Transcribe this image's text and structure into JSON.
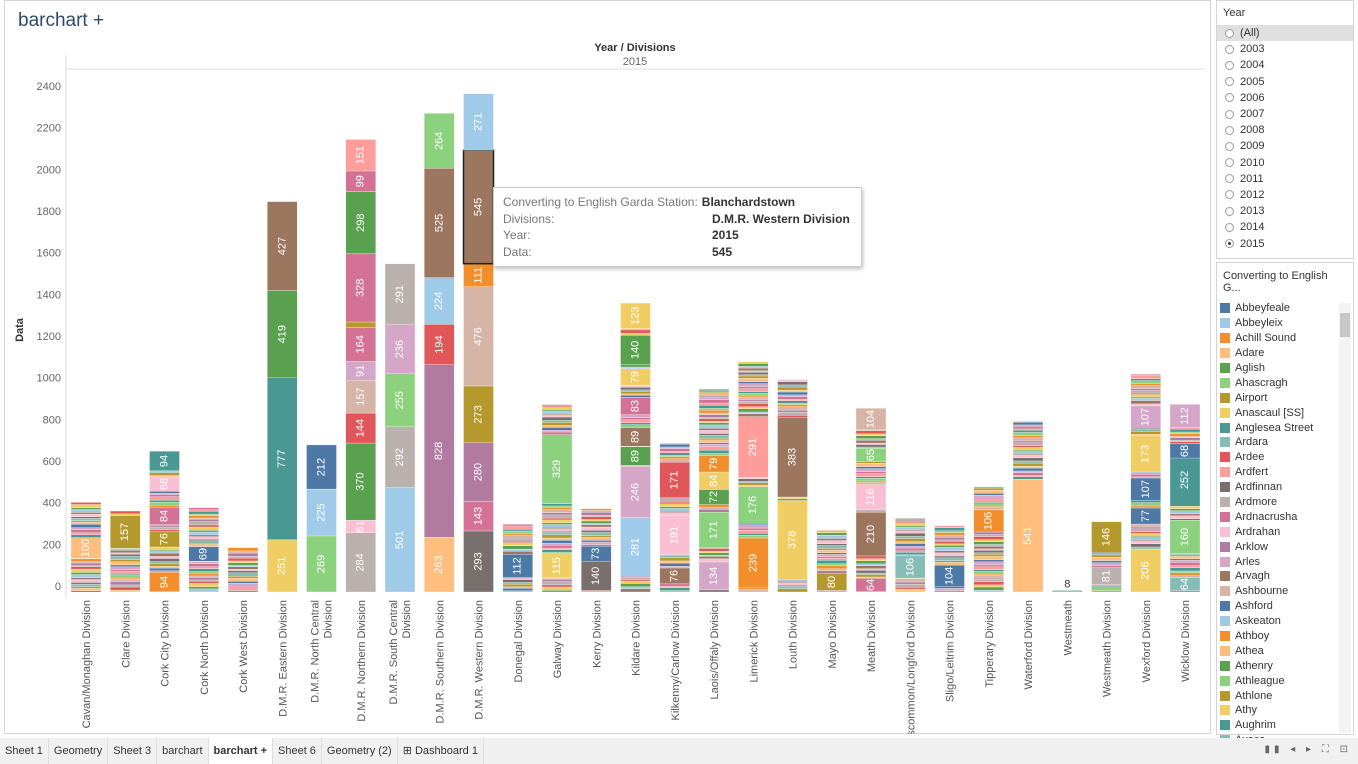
{
  "title": "barchart +",
  "chart_data": {
    "type": "bar",
    "stacked": true,
    "title": "Year / Divisions",
    "subtitle": "2015",
    "ylabel": "Data",
    "xlabel": "",
    "ylim": [
      0,
      2450
    ],
    "yticks": [
      0,
      200,
      400,
      600,
      800,
      1000,
      1200,
      1400,
      1600,
      1800,
      2000,
      2200,
      2400
    ],
    "grid": false,
    "legend": "right",
    "categories": [
      "Cavan/Monaghan Division",
      "Clare Division",
      "Cork City Division",
      "Cork North Division",
      "Cork West Division",
      "D.M.R. Eastern Division",
      "D.M.R. North Central Division",
      "D.M.R. Northern Division",
      "D.M.R. South Central Division",
      "D.M.R. Southern Division",
      "D.M.R. Western Division",
      "Donegal Division",
      "Galway Division",
      "Kerry Division",
      "Kildare Division",
      "Kilkenny/Carlow Division",
      "Laois/Offaly Division",
      "Limerick Division",
      "Louth Division",
      "Mayo Division",
      "Meath Division",
      "Roscommon/Longford Division",
      "Sligo/Leitrim Division",
      "Tipperary Division",
      "Waterford Division",
      "Westmeath",
      "Westmeath Division",
      "Wexford Division",
      "Wicklow Division"
    ],
    "totals": [
      430,
      390,
      675,
      405,
      215,
      1875,
      706,
      2172,
      1575,
      2298,
      2392,
      325,
      900,
      400,
      1387,
      715,
      975,
      1105,
      1020,
      295,
      882,
      355,
      320,
      505,
      820,
      8,
      337,
      1045,
      901
    ],
    "labeled_segments": [
      [
        {
          "base": 161,
          "value": 100,
          "color": "#ffbe7d"
        }
      ],
      [
        {
          "base": 210,
          "value": 157,
          "color": "#b6992d"
        }
      ],
      [
        {
          "base": 1,
          "value": 94,
          "color": "#f28e2b"
        },
        {
          "base": 216,
          "value": 76,
          "color": "#b6992d"
        },
        {
          "base": 323,
          "value": 84,
          "color": "#d37295"
        },
        {
          "base": 484,
          "value": 68,
          "color": "#fabfd2"
        },
        {
          "base": 582,
          "value": 94,
          "color": "#499894"
        }
      ],
      [
        {
          "base": 148,
          "value": 69,
          "color": "#4e79a7"
        }
      ],
      [],
      [
        {
          "base": 0,
          "value": 251,
          "color": "#f1ce63"
        },
        {
          "base": 251,
          "value": 777,
          "color": "#499894"
        },
        {
          "base": 1028,
          "value": 419,
          "color": "#59a14f"
        },
        {
          "base": 1447,
          "value": 427,
          "color": "#9d7660"
        }
      ],
      [
        {
          "base": 0,
          "value": 269,
          "color": "#8cd17d"
        },
        {
          "base": 269,
          "value": 225,
          "color": "#a0cbe8"
        },
        {
          "base": 494,
          "value": 212,
          "color": "#4e79a7"
        }
      ],
      [
        {
          "base": 0,
          "value": 284,
          "color": "#bab0ac"
        },
        {
          "base": 284,
          "value": 61,
          "color": "#fabfd2"
        },
        {
          "base": 345,
          "value": 370,
          "color": "#59a14f"
        },
        {
          "base": 715,
          "value": 144,
          "color": "#e15759"
        },
        {
          "base": 859,
          "value": 157,
          "color": "#d7b5a6"
        },
        {
          "base": 1016,
          "value": 91,
          "color": "#d4a6c8"
        },
        {
          "base": 1107,
          "value": 164,
          "color": "#d37295"
        },
        {
          "base": 1271,
          "value": 25,
          "color": "#b6992d"
        },
        {
          "base": 1296,
          "value": 328,
          "color": "#d37295"
        },
        {
          "base": 1624,
          "value": 298,
          "color": "#59a14f"
        },
        {
          "base": 1922,
          "value": 99,
          "color": "#d37295"
        },
        {
          "base": 2021,
          "value": 151,
          "color": "#ff9d9a"
        }
      ],
      [
        {
          "base": 0,
          "value": 501,
          "color": "#a0cbe8"
        },
        {
          "base": 501,
          "value": 292,
          "color": "#bab0ac"
        },
        {
          "base": 793,
          "value": 255,
          "color": "#8cd17d"
        },
        {
          "base": 1048,
          "value": 236,
          "color": "#d4a6c8"
        },
        {
          "base": 1284,
          "value": 291,
          "color": "#bab0ac"
        }
      ],
      [
        {
          "base": 0,
          "value": 263,
          "color": "#ffbe7d"
        },
        {
          "base": 263,
          "value": 828,
          "color": "#b07aa1"
        },
        {
          "base": 1091,
          "value": 194,
          "color": "#e15759"
        },
        {
          "base": 1285,
          "value": 224,
          "color": "#a0cbe8"
        },
        {
          "base": 1509,
          "value": 525,
          "color": "#9d7660"
        },
        {
          "base": 2034,
          "value": 264,
          "color": "#8cd17d"
        }
      ],
      [
        {
          "base": 0,
          "value": 293,
          "color": "#79706e"
        },
        {
          "base": 293,
          "value": 143,
          "color": "#d37295"
        },
        {
          "base": 436,
          "value": 280,
          "color": "#b07aa1"
        },
        {
          "base": 716,
          "value": 273,
          "color": "#b6992d"
        },
        {
          "base": 989,
          "value": 476,
          "color": "#d7b5a6"
        },
        {
          "base": 1465,
          "value": 111,
          "color": "#f28e2b"
        },
        {
          "base": 1576,
          "value": 545,
          "color": "#9d7660",
          "highlight": true
        },
        {
          "base": 2121,
          "value": 271,
          "color": "#a0cbe8"
        }
      ],
      [
        {
          "base": 69,
          "value": 112,
          "color": "#4e79a7"
        }
      ],
      [
        {
          "base": 68,
          "value": 115,
          "color": "#f1ce63"
        },
        {
          "base": 426,
          "value": 329,
          "color": "#8cd17d"
        }
      ],
      [
        {
          "base": 7,
          "value": 140,
          "color": "#79706e"
        },
        {
          "base": 147,
          "value": 73,
          "color": "#4e79a7"
        }
      ],
      [
        {
          "base": 76,
          "value": 281,
          "color": "#a0cbe8"
        },
        {
          "base": 357,
          "value": 246,
          "color": "#d4a6c8"
        },
        {
          "base": 608,
          "value": 89,
          "color": "#59a14f"
        },
        {
          "base": 700,
          "value": 89,
          "color": "#9d7660"
        },
        {
          "base": 851,
          "value": 83,
          "color": "#d37295"
        },
        {
          "base": 992,
          "value": 79,
          "color": "#f1ce63"
        },
        {
          "base": 1092,
          "value": 140,
          "color": "#59a14f"
        },
        {
          "base": 1264,
          "value": 123,
          "color": "#f1ce63"
        }
      ],
      [
        {
          "base": 39,
          "value": 76,
          "color": "#9d7660"
        },
        {
          "base": 178,
          "value": 191,
          "color": "#fabfd2"
        },
        {
          "base": 452,
          "value": 171,
          "color": "#e15759"
        }
      ],
      [
        {
          "base": 10,
          "value": 134,
          "color": "#d4a6c8"
        },
        {
          "base": 212,
          "value": 171,
          "color": "#8cd17d"
        },
        {
          "base": 420,
          "value": 72,
          "color": "#59a14f"
        },
        {
          "base": 492,
          "value": 84,
          "color": "#f1ce63"
        },
        {
          "base": 576,
          "value": 79,
          "color": "#f28e2b"
        }
      ],
      [
        {
          "base": 20,
          "value": 239,
          "color": "#f28e2b"
        },
        {
          "base": 330,
          "value": 176,
          "color": "#8cd17d"
        },
        {
          "base": 550,
          "value": 291,
          "color": "#ff9d9a"
        }
      ],
      [
        {
          "base": 61,
          "value": 378,
          "color": "#f1ce63"
        },
        {
          "base": 456,
          "value": 383,
          "color": "#9d7660"
        }
      ],
      [
        {
          "base": 8,
          "value": 80,
          "color": "#b6992d"
        }
      ],
      [
        {
          "base": 2,
          "value": 64,
          "color": "#d37295"
        },
        {
          "base": 173,
          "value": 210,
          "color": "#9d7660"
        },
        {
          "base": 398,
          "value": 116,
          "color": "#fabfd2"
        },
        {
          "base": 625,
          "value": 65,
          "color": "#8cd17d"
        },
        {
          "base": 778,
          "value": 104,
          "color": "#d7b5a6"
        }
      ],
      [
        {
          "base": 67,
          "value": 106,
          "color": "#86bcb6"
        }
      ],
      [
        {
          "base": 25,
          "value": 104,
          "color": "#4e79a7"
        }
      ],
      [
        {
          "base": 288,
          "value": 106,
          "color": "#f28e2b"
        }
      ],
      [
        {
          "base": 0,
          "value": 541,
          "color": "#ffbe7d"
        }
      ],
      [
        {
          "base": 0,
          "value": 8,
          "color": "#86bcb6"
        }
      ],
      [
        {
          "base": 36,
          "value": 81,
          "color": "#bab0ac"
        },
        {
          "base": 191,
          "value": 146,
          "color": "#b6992d"
        }
      ],
      [
        {
          "base": 0,
          "value": 206,
          "color": "#f1ce63"
        },
        {
          "base": 326,
          "value": 77,
          "color": "#4e79a7"
        },
        {
          "base": 440,
          "value": 107,
          "color": "#4e79a7"
        },
        {
          "base": 576,
          "value": 173,
          "color": "#f1ce63"
        },
        {
          "base": 786,
          "value": 107,
          "color": "#d4a6c8"
        }
      ],
      [
        {
          "base": 6,
          "value": 64,
          "color": "#86bcb6"
        },
        {
          "base": 184,
          "value": 160,
          "color": "#8cd17d"
        },
        {
          "base": 412,
          "value": 252,
          "color": "#499894"
        },
        {
          "base": 643,
          "value": 68,
          "color": "#4e79a7"
        },
        {
          "base": 789,
          "value": 112,
          "color": "#d4a6c8"
        }
      ]
    ]
  },
  "tooltip": {
    "rows": [
      {
        "k": "Converting to English Garda Station:",
        "v": "Blanchardstown"
      },
      {
        "k": "Divisions:",
        "v": "D.M.R. Western Division"
      },
      {
        "k": "Year:",
        "v": "2015"
      },
      {
        "k": "Data:",
        "v": "545"
      }
    ]
  },
  "year_filter": {
    "title": "Year",
    "options": [
      "(All)",
      "2003",
      "2004",
      "2005",
      "2006",
      "2007",
      "2008",
      "2009",
      "2010",
      "2011",
      "2012",
      "2013",
      "2014",
      "2015"
    ],
    "selected": "2015"
  },
  "legend": {
    "title": "Converting to English G...",
    "items": [
      {
        "name": "Abbeyfeale",
        "color": "#4e79a7"
      },
      {
        "name": "Abbeyleix",
        "color": "#a0cbe8"
      },
      {
        "name": "Achill Sound",
        "color": "#f28e2b"
      },
      {
        "name": "Adare",
        "color": "#ffbe7d"
      },
      {
        "name": "Aglish",
        "color": "#59a14f"
      },
      {
        "name": "Ahascragh",
        "color": "#8cd17d"
      },
      {
        "name": "Airport",
        "color": "#b6992d"
      },
      {
        "name": "Anascaul [SS]",
        "color": "#f1ce63"
      },
      {
        "name": "Anglesea Street",
        "color": "#499894"
      },
      {
        "name": "Ardara",
        "color": "#86bcb6"
      },
      {
        "name": "Ardee",
        "color": "#e15759"
      },
      {
        "name": "Ardfert",
        "color": "#ff9d9a"
      },
      {
        "name": "Ardfinnan",
        "color": "#79706e"
      },
      {
        "name": "Ardmore",
        "color": "#bab0ac"
      },
      {
        "name": "Ardnacrusha",
        "color": "#d37295"
      },
      {
        "name": "Ardrahan",
        "color": "#fabfd2"
      },
      {
        "name": "Arklow",
        "color": "#b07aa1"
      },
      {
        "name": "Arles",
        "color": "#d4a6c8"
      },
      {
        "name": "Arvagh",
        "color": "#9d7660"
      },
      {
        "name": "Ashbourne",
        "color": "#d7b5a6"
      },
      {
        "name": "Ashford",
        "color": "#4e79a7"
      },
      {
        "name": "Askeaton",
        "color": "#a0cbe8"
      },
      {
        "name": "Athboy",
        "color": "#f28e2b"
      },
      {
        "name": "Athea",
        "color": "#ffbe7d"
      },
      {
        "name": "Athenry",
        "color": "#59a14f"
      },
      {
        "name": "Athleague",
        "color": "#8cd17d"
      },
      {
        "name": "Athlone",
        "color": "#b6992d"
      },
      {
        "name": "Athy",
        "color": "#f1ce63"
      },
      {
        "name": "Aughrim",
        "color": "#499894"
      },
      {
        "name": "Avoca",
        "color": "#86bcb6"
      }
    ]
  },
  "tabs": [
    {
      "label": "Sheet 1"
    },
    {
      "label": "Geometry"
    },
    {
      "label": "Sheet 3"
    },
    {
      "label": "barchart"
    },
    {
      "label": "barchart +",
      "active": true
    },
    {
      "label": "Sheet 6"
    },
    {
      "label": "Geometry (2)"
    },
    {
      "label": "⊞ Dashboard 1"
    }
  ]
}
